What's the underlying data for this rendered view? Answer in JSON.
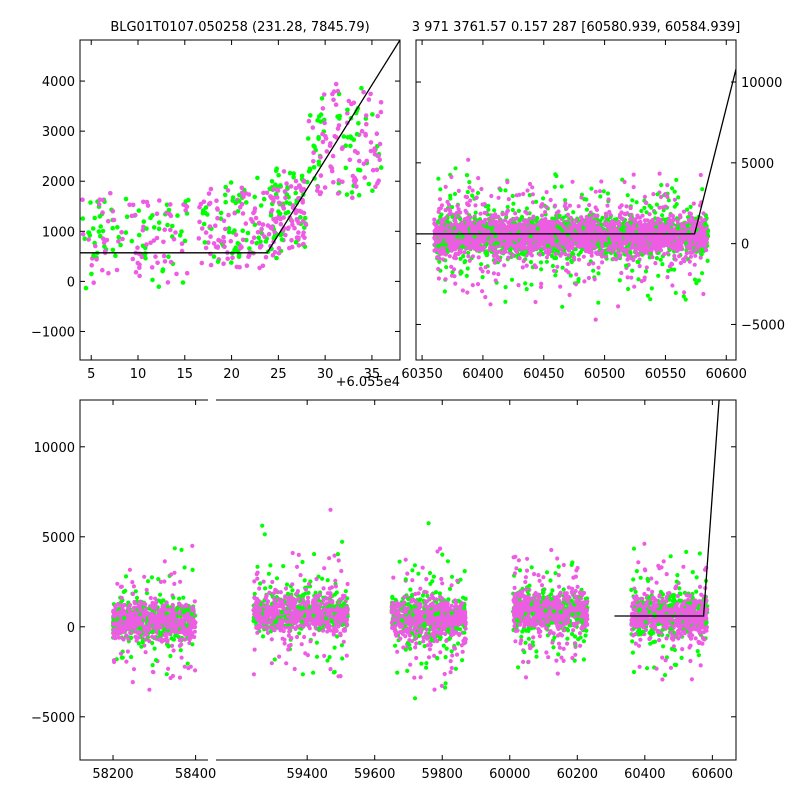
{
  "colors": {
    "green": "#00ff00",
    "magenta": "#ee5ce4",
    "line": "#000000"
  },
  "chart_data": [
    {
      "type": "scatter",
      "title": "BLG01T0107.050258 (231.28, 7845.79)",
      "xlabel": "",
      "ylabel": "",
      "xlim": [
        3.8,
        38.0
      ],
      "ylim": [
        -1570,
        4820
      ],
      "xticks": [
        "5",
        "10",
        "15",
        "20",
        "25",
        "30",
        "35"
      ],
      "yticks": [
        "4000",
        "3000",
        "2000",
        "1000",
        "0",
        "−1000"
      ],
      "x_offset_label": "+6.055e4",
      "grid": false,
      "scatter_bands": [
        {
          "x": [
            4.0,
            15.5
          ],
          "y_mid": 900,
          "y_spread": 1600
        },
        {
          "x": [
            16.5,
            24.0
          ],
          "y_mid": 1100,
          "y_spread": 1500
        },
        {
          "x": [
            24.0,
            28.0
          ],
          "y_mid": 1300,
          "y_spread": 1500
        },
        {
          "x": [
            28.0,
            36.0
          ],
          "y_mid": 2800,
          "y_spread": 2000
        }
      ],
      "series": [
        {
          "type": "line",
          "x": [
            3.8,
            23.8,
            38.0
          ],
          "y": [
            570,
            570,
            4820
          ]
        }
      ]
    },
    {
      "type": "scatter",
      "title": "3 971 3761.57 0.157 287 [60580.939, 60584.939]",
      "xlabel": "",
      "ylabel": "",
      "xlim": [
        60345,
        60608
      ],
      "ylim": [
        -7200,
        12600
      ],
      "xticks": [
        "60350",
        "60400",
        "60450",
        "60500",
        "60550",
        "60600"
      ],
      "yticks": [
        "10000",
        "5000",
        "0",
        "−5000"
      ],
      "grid": false,
      "scatter_bands": [
        {
          "x": [
            60360,
            60585
          ],
          "y_mid": 500,
          "y_spread": 1800
        }
      ],
      "series": [
        {
          "type": "line",
          "x": [
            60345,
            60574,
            60608
          ],
          "y": [
            600,
            600,
            10800
          ]
        }
      ]
    },
    {
      "type": "scatter",
      "title": "",
      "xlabel": "",
      "ylabel": "",
      "xlim": [
        58120,
        60670
      ],
      "ylim": [
        -7400,
        12600
      ],
      "xticks": [
        "58200",
        "58400",
        "59400",
        "59600",
        "59800",
        "60000",
        "60200",
        "60400",
        "60600"
      ],
      "yticks": [
        "10000",
        "5000",
        "0",
        "−5000"
      ],
      "grid": false,
      "scatter_bands": [
        {
          "x": [
            58200,
            58400
          ],
          "y_mid": 300,
          "y_spread": 1800
        },
        {
          "x": [
            59240,
            59520
          ],
          "y_mid": 800,
          "y_spread": 1800
        },
        {
          "x": [
            59650,
            59870
          ],
          "y_mid": 500,
          "y_spread": 1800
        },
        {
          "x": [
            60010,
            60230
          ],
          "y_mid": 900,
          "y_spread": 1800
        },
        {
          "x": [
            60360,
            60585
          ],
          "y_mid": 700,
          "y_spread": 1800
        }
      ],
      "series": [
        {
          "type": "line",
          "x": [
            60310,
            60574,
            60620
          ],
          "y": [
            600,
            600,
            12600
          ]
        }
      ]
    }
  ]
}
